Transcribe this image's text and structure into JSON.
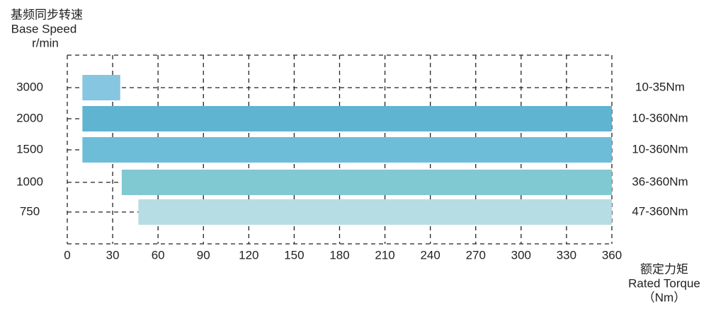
{
  "chart_data": {
    "type": "range-bar",
    "ylabel": [
      "基频同步转速",
      "Base Speed",
      "r/min"
    ],
    "xlabel": [
      "额定力矩",
      "Rated Torque",
      "（Nm）"
    ],
    "categories": [
      "3000",
      "2000",
      "1500",
      "1000",
      "750"
    ],
    "starts": [
      10,
      10,
      10,
      36,
      47
    ],
    "ends": [
      35,
      360,
      360,
      360,
      360
    ],
    "value_labels": [
      "10-35Nm",
      "10-360Nm",
      "10-360Nm",
      "36-360Nm",
      "47-360Nm"
    ],
    "colors": [
      "#86c6e0",
      "#5fb4d2",
      "#6ebdd8",
      "#80c8d2",
      "#b6dde3"
    ],
    "xlim": [
      0,
      360
    ],
    "xticks": [
      0,
      30,
      60,
      90,
      120,
      150,
      180,
      210,
      240,
      270,
      300,
      330,
      360
    ],
    "grid": true
  }
}
